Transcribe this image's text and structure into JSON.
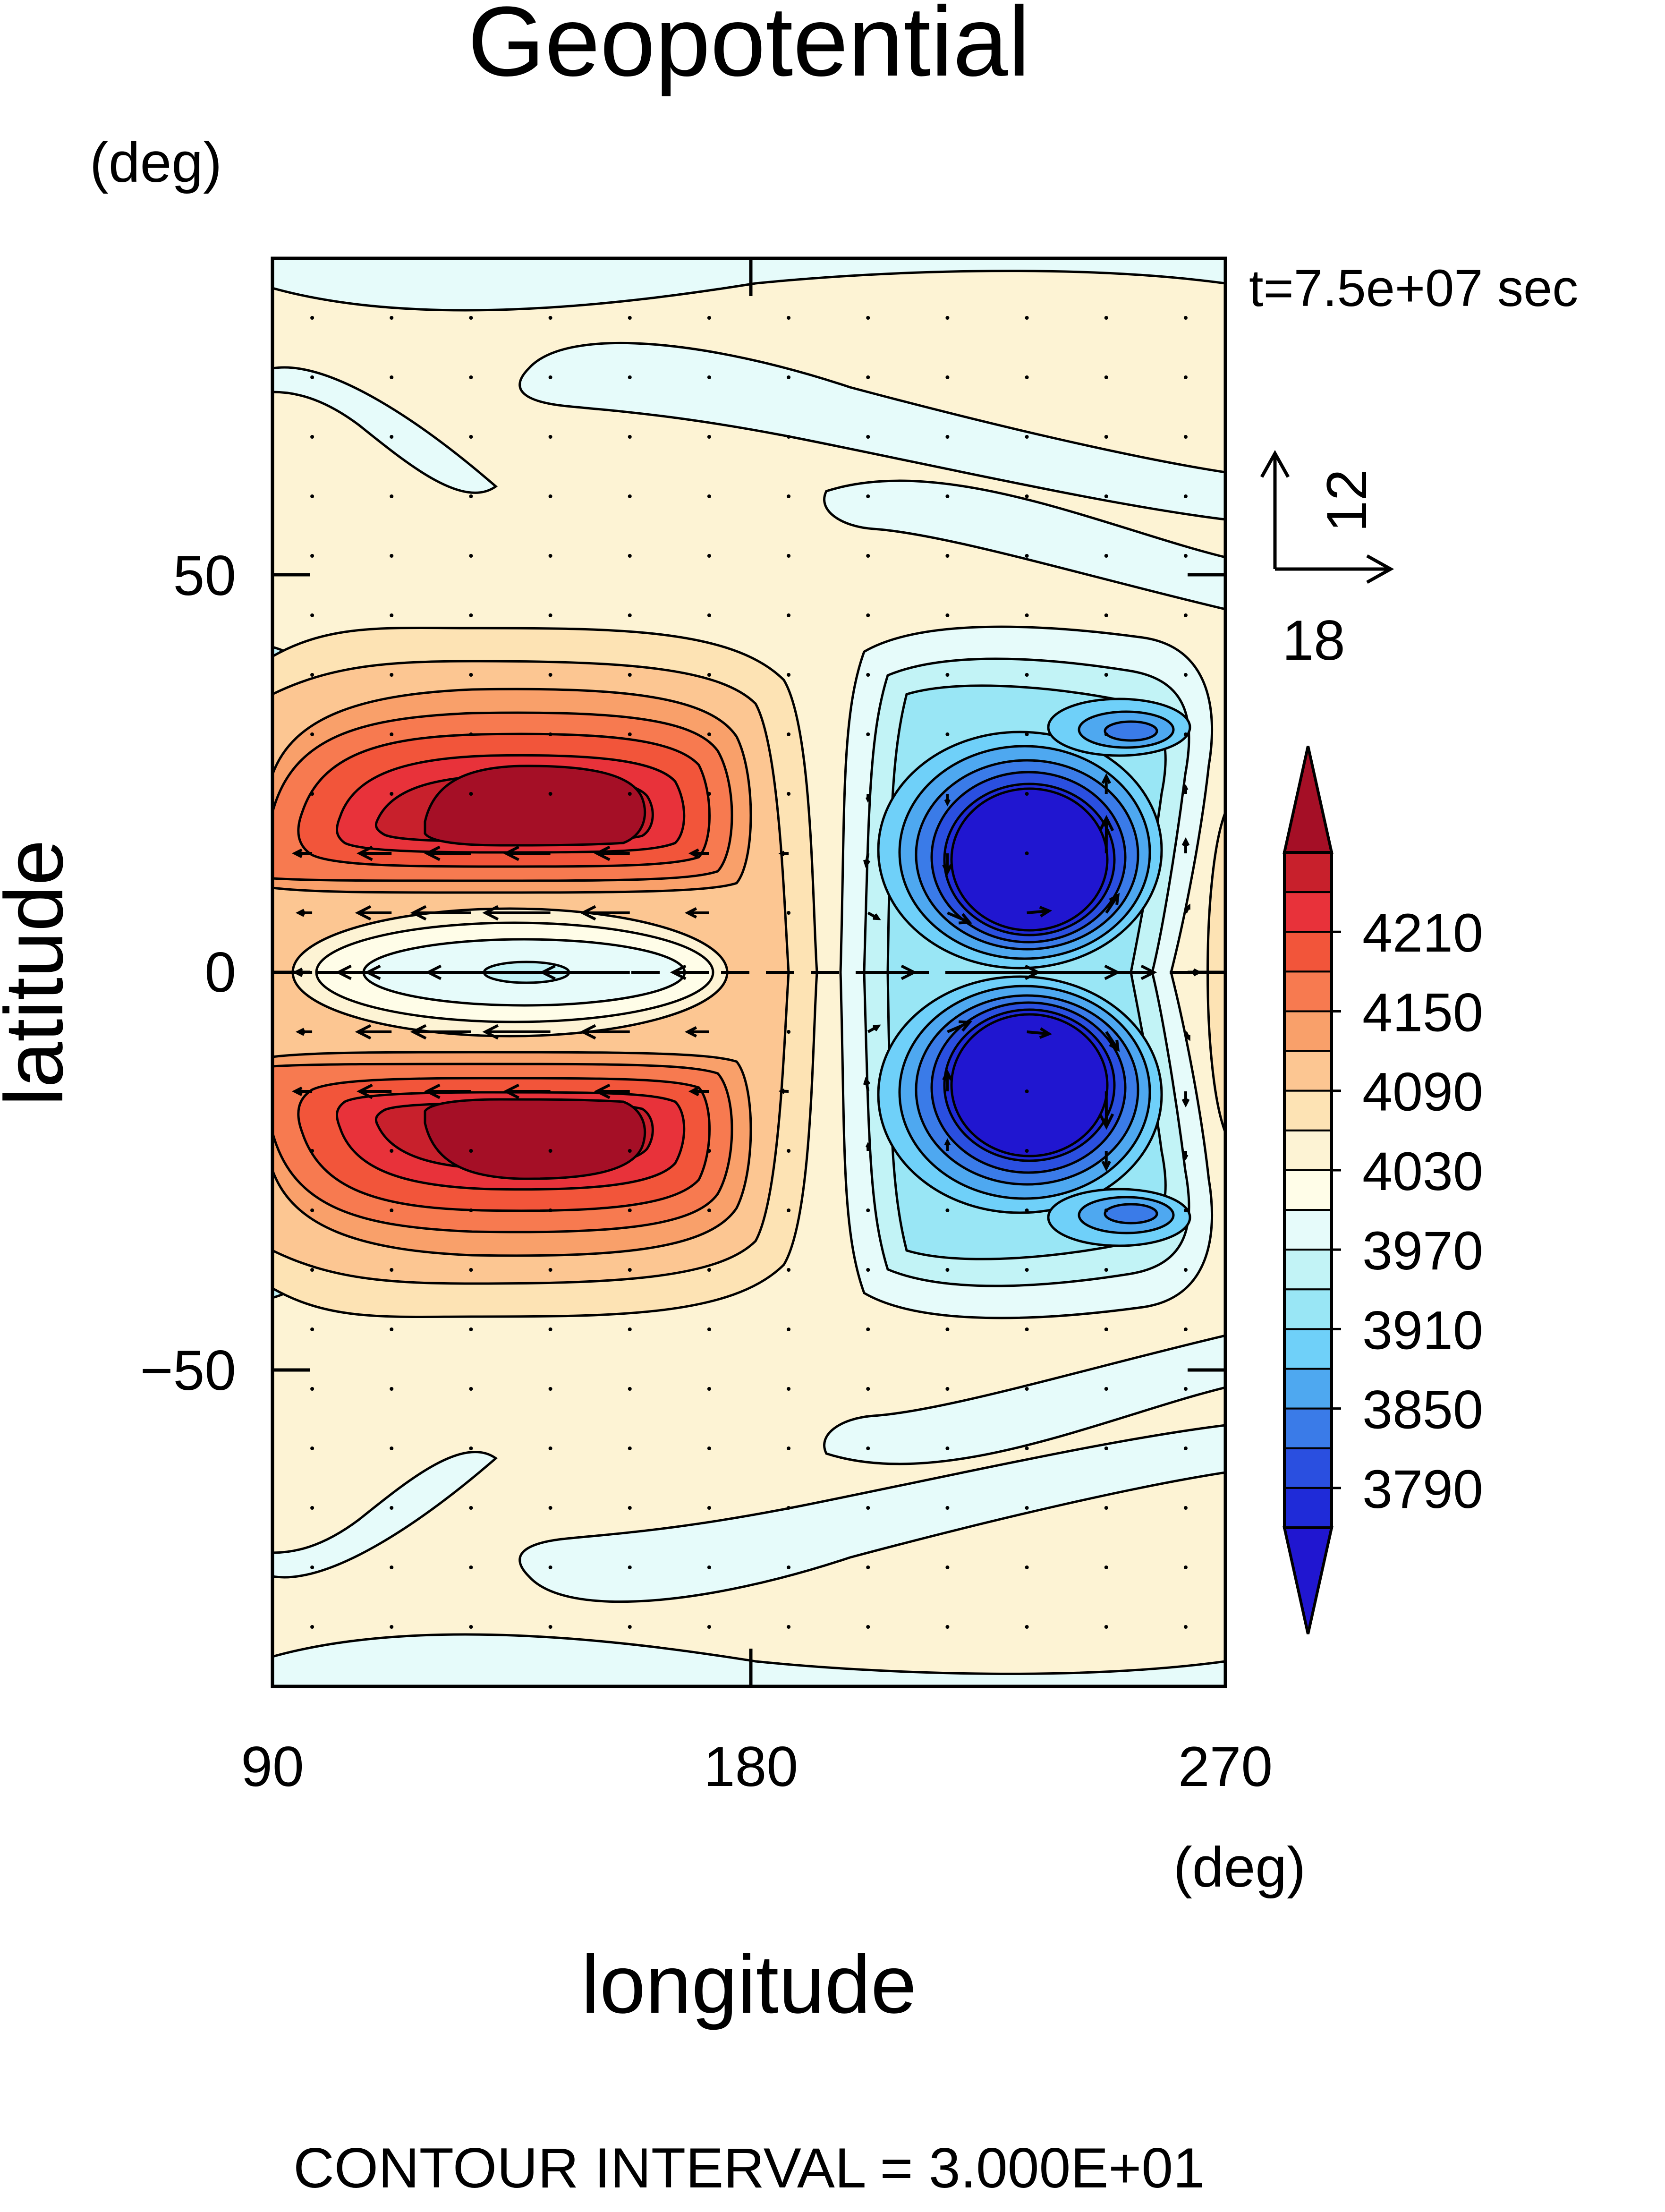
{
  "chart_data": {
    "type": "contour",
    "title": "Geopotential",
    "xlabel": "longitude",
    "ylabel": "latitude",
    "x_unit": "(deg)",
    "y_unit": "(deg)",
    "xlim": [
      90,
      270
    ],
    "ylim": [
      -90,
      90
    ],
    "x_ticks": [
      90,
      180,
      270
    ],
    "y_ticks": [
      -50,
      0,
      50
    ],
    "y_tick_labels": [
      "−50",
      "0",
      "50"
    ],
    "time_label": "t=7.5e+07 sec",
    "contour_interval_label": "CONTOUR INTERVAL = 3.000E+01",
    "contour_interval": 30,
    "reference_vector": {
      "x_value": "18",
      "y_value": "12"
    },
    "colorbar": {
      "labels": [
        "4210",
        "4150",
        "4090",
        "4030",
        "3970",
        "3910",
        "3850",
        "3790"
      ],
      "levels": [
        3760,
        3790,
        3820,
        3850,
        3880,
        3910,
        3940,
        3970,
        4000,
        4030,
        4060,
        4090,
        4120,
        4150,
        4180,
        4210,
        4240
      ],
      "colors_top_to_bottom": [
        "#a50f26",
        "#c8202c",
        "#e8323a",
        "#f2553a",
        "#f77a50",
        "#f9a06a",
        "#fcc692",
        "#fde3b4",
        "#fdf3d4",
        "#fffde8",
        "#e6fbfa",
        "#c2f3f6",
        "#99e6f5",
        "#6fd0f9",
        "#4ea8f0",
        "#3a7be8",
        "#2a4fe0",
        "#1f2bd8",
        "#2016d0"
      ]
    },
    "field_features": [
      {
        "kind": "high",
        "lon": 136,
        "lat": 20,
        "value": 4240
      },
      {
        "kind": "high",
        "lon": 136,
        "lat": -20,
        "value": 4240
      },
      {
        "kind": "low",
        "lon": 136,
        "lat": 0,
        "value": 3970
      },
      {
        "kind": "low",
        "lon": 231,
        "lat": 14,
        "value": 3760
      },
      {
        "kind": "low",
        "lon": 231,
        "lat": -14,
        "value": 3760
      },
      {
        "kind": "low",
        "lon": 245,
        "lat": 31,
        "value": 3840
      },
      {
        "kind": "low",
        "lon": 245,
        "lat": -31,
        "value": 3840
      }
    ]
  }
}
